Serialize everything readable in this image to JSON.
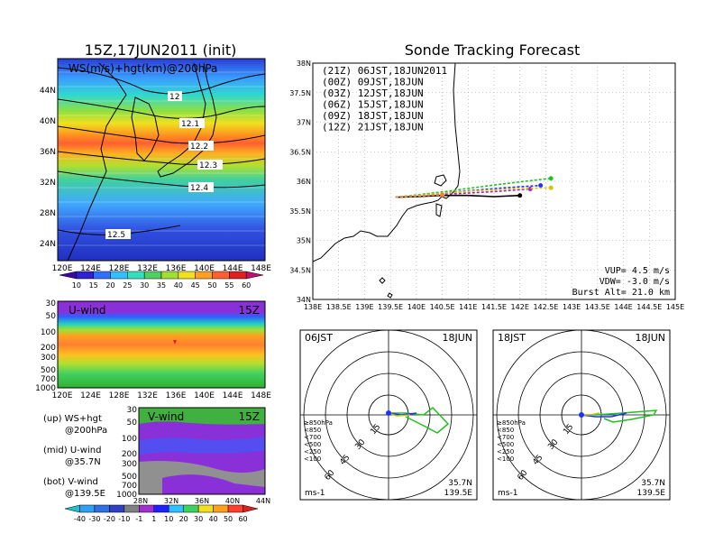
{
  "left_panel": {
    "title": "15Z,17JUN2011 (init)",
    "top_map": {
      "label": "WS(m/s)+hgt(km)@200hPa",
      "lat_labels": [
        "44N",
        "40N",
        "36N",
        "32N",
        "28N",
        "24N"
      ],
      "lon_labels": [
        "120E",
        "124E",
        "128E",
        "132E",
        "136E",
        "140E",
        "144E",
        "148E"
      ],
      "contour_labels": [
        "12",
        "12.1",
        "12.2",
        "12.3",
        "12.4",
        "12.5"
      ],
      "colorbar_labels": [
        "10",
        "15",
        "20",
        "25",
        "30",
        "35",
        "40",
        "45",
        "50",
        "55",
        "60"
      ]
    },
    "u_panel": {
      "label": "U-wind",
      "time": "15Z",
      "p_labels": [
        "30",
        "50",
        "100",
        "200",
        "300",
        "500",
        "700",
        "1000"
      ],
      "lon_labels": [
        "120E",
        "124E",
        "128E",
        "132E",
        "136E",
        "140E",
        "144E",
        "148E"
      ]
    },
    "v_panel": {
      "label": "V-wind",
      "time": "15Z",
      "p_labels": [
        "30",
        "50",
        "100",
        "200",
        "300",
        "500",
        "700",
        "1000"
      ],
      "lat_labels": [
        "28N",
        "32N",
        "36N",
        "40N",
        "44N"
      ]
    },
    "legend_notes": [
      {
        "l1": "(up) WS+hgt",
        "l2": "@200hPa"
      },
      {
        "l1": "(mid) U-wind",
        "l2": "@35.7N"
      },
      {
        "l1": "(bot) V-wind",
        "l2": "@139.5E"
      }
    ],
    "bottom_colorbar_labels": [
      "-40",
      "-30",
      "-20",
      "-10",
      "-1",
      "1",
      "10",
      "20",
      "30",
      "40",
      "50",
      "60"
    ]
  },
  "right_panel": {
    "title": "Sonde Tracking Forecast",
    "lat_labels": [
      "38N",
      "37.5N",
      "37N",
      "36.5N",
      "36N",
      "35.5N",
      "35N",
      "34.5N",
      "34N"
    ],
    "lon_labels": [
      "138E",
      "138.5E",
      "139E",
      "139.5E",
      "140E",
      "140.5E",
      "141E",
      "141.5E",
      "142E",
      "142.5E",
      "143E",
      "143.5E",
      "144E",
      "144.5E",
      "145E"
    ],
    "tracks": [
      {
        "label": "(21Z)  06JST,18JUN2011",
        "color": "#000000"
      },
      {
        "label": "(00Z)  09JST,18JUN",
        "color": "#a020c0"
      },
      {
        "label": "(03Z)  12JST,18JUN",
        "color": "#2030ff"
      },
      {
        "label": "(06Z)  15JST,18JUN",
        "color": "#20c020"
      },
      {
        "label": "(09Z)  18JST,18JUN",
        "color": "#e0c000"
      },
      {
        "label": "(12Z)  21JST,18JUN",
        "color": "#ff8030"
      }
    ],
    "info": [
      "VUP=  4.5  m/s",
      "VDW= -3.0  m/s",
      "Burst Alt= 21.0  km"
    ]
  },
  "hodographs": [
    {
      "time": "06JST",
      "date": "18JUN",
      "ring_labels": [
        "15",
        "30",
        "45",
        "60"
      ],
      "legend": [
        "≥850hPa",
        "<850",
        "<700",
        "<500",
        "<250",
        "<100"
      ],
      "unit": "ms-1",
      "lat": "35.7N",
      "lon": "139.5E"
    },
    {
      "time": "18JST",
      "date": "18JUN",
      "ring_labels": [
        "15",
        "30",
        "45",
        "60"
      ],
      "legend": [
        "≥850hPa",
        "<850",
        "<700",
        "<500",
        "<250",
        "<100"
      ],
      "unit": "ms-1",
      "lat": "35.7N",
      "lon": "139.5E"
    }
  ],
  "chart_data": [
    {
      "type": "line",
      "title": "Sonde Tracking Forecast",
      "xlim": [
        138,
        145
      ],
      "ylim": [
        34,
        38
      ],
      "series": [
        {
          "name": "(21Z) 06JST,18JUN2011",
          "x": [
            139.6,
            140.0,
            140.5,
            141.0,
            141.5,
            142.0
          ],
          "y": [
            35.73,
            35.74,
            35.76,
            35.76,
            35.74,
            35.76
          ]
        },
        {
          "name": "(00Z) 09JST,18JUN",
          "x": [
            139.6,
            140.0,
            140.5,
            141.0,
            141.6,
            142.2
          ],
          "y": [
            35.73,
            35.75,
            35.78,
            35.8,
            35.83,
            35.87
          ]
        },
        {
          "name": "(03Z) 12JST,18JUN",
          "x": [
            139.6,
            140.0,
            140.5,
            141.0,
            141.7,
            142.4
          ],
          "y": [
            35.73,
            35.76,
            35.8,
            35.84,
            35.89,
            35.93
          ]
        },
        {
          "name": "(06Z) 15JST,18JUN",
          "x": [
            139.6,
            140.0,
            140.5,
            141.0,
            141.8,
            142.6
          ],
          "y": [
            35.73,
            35.77,
            35.82,
            35.88,
            35.97,
            36.05
          ]
        },
        {
          "name": "(09Z) 18JST,18JUN",
          "x": [
            139.6,
            140.0,
            140.5,
            141.0,
            141.8,
            142.6
          ],
          "y": [
            35.73,
            35.76,
            35.8,
            35.83,
            35.87,
            35.89
          ]
        },
        {
          "name": "(12Z) 21JST,18JUN",
          "x": [
            139.6,
            140.0,
            140.5
          ],
          "y": [
            35.73,
            35.75,
            35.77
          ]
        }
      ]
    }
  ]
}
